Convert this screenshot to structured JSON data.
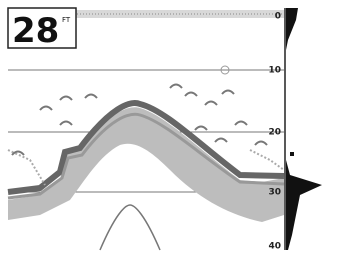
{
  "depth": {
    "value": "28",
    "unit": "FT"
  },
  "scale": [
    "0",
    "10",
    "20",
    "30",
    "40"
  ]
}
